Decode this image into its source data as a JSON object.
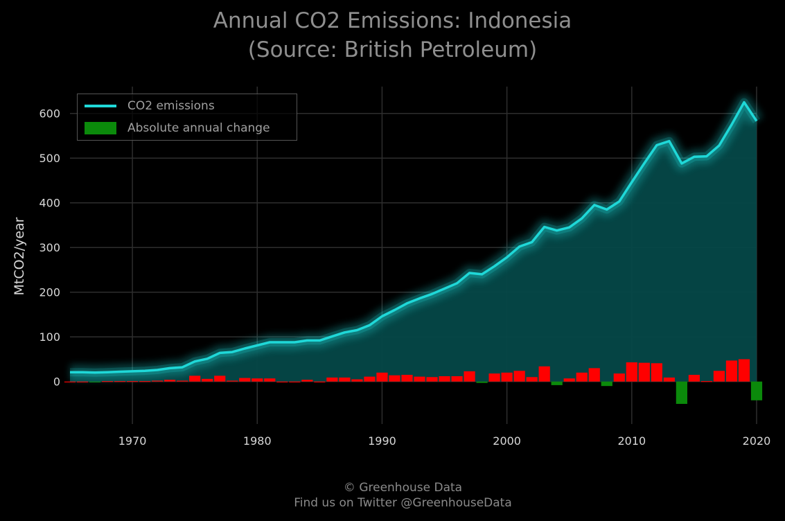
{
  "title_line1": "Annual CO2 Emissions: Indonesia",
  "title_line2": "(Source: British Petroleum)",
  "footer_line1": "© Greenhouse Data",
  "footer_line2": "Find us on Twitter @GreenhouseData",
  "legend": {
    "line_label": "CO2 emissions",
    "bar_label": "Absolute annual change"
  },
  "colors": {
    "line": "#1fd8d8",
    "fill": "#054848",
    "increase": "#ff0000",
    "decrease": "#0b8a0b",
    "grid": "#2e2e2e"
  },
  "chart_data": {
    "type": "line",
    "title": "Annual CO2 Emissions: Indonesia (Source: British Petroleum)",
    "xlabel": "",
    "ylabel": "MtCO2/year",
    "xlim": [
      1965,
      2020
    ],
    "ylim": [
      -95,
      660
    ],
    "xticks": [
      1970,
      1980,
      1990,
      2000,
      2010,
      2020
    ],
    "yticks": [
      0,
      100,
      200,
      300,
      400,
      500,
      600
    ],
    "grid": true,
    "legend_position": "top-left",
    "x": [
      1965,
      1966,
      1967,
      1968,
      1969,
      1970,
      1971,
      1972,
      1973,
      1974,
      1975,
      1976,
      1977,
      1978,
      1979,
      1980,
      1981,
      1982,
      1983,
      1984,
      1985,
      1986,
      1987,
      1988,
      1989,
      1990,
      1991,
      1992,
      1993,
      1994,
      1995,
      1996,
      1997,
      1998,
      1999,
      2000,
      2001,
      2002,
      2003,
      2004,
      2005,
      2006,
      2007,
      2008,
      2009,
      2010,
      2011,
      2012,
      2013,
      2014,
      2015,
      2016,
      2017,
      2018,
      2019,
      2020
    ],
    "series": [
      {
        "name": "CO2 emissions",
        "values": [
          21,
          21,
          20,
          21,
          22,
          23,
          24,
          26,
          30,
          32,
          45,
          51,
          64,
          66,
          74,
          81,
          88,
          88,
          88,
          92,
          92,
          101,
          110,
          115,
          126,
          146,
          160,
          175,
          186,
          196,
          208,
          220,
          243,
          240,
          258,
          278,
          302,
          312,
          346,
          338,
          345,
          365,
          395,
          385,
          403,
          446,
          488,
          529,
          538,
          488,
          503,
          504,
          528,
          575,
          625,
          583
        ]
      },
      {
        "name": "Absolute annual change",
        "values": [
          0,
          0,
          -1,
          1,
          1,
          1,
          1,
          2,
          4,
          2,
          13,
          6,
          13,
          2,
          8,
          7,
          7,
          0,
          0,
          4,
          0,
          9,
          9,
          5,
          11,
          20,
          14,
          15,
          11,
          10,
          12,
          12,
          23,
          -3,
          18,
          20,
          24,
          10,
          34,
          -8,
          7,
          20,
          30,
          -10,
          18,
          43,
          42,
          41,
          9,
          -50,
          15,
          1,
          24,
          47,
          50,
          -42
        ]
      }
    ]
  }
}
